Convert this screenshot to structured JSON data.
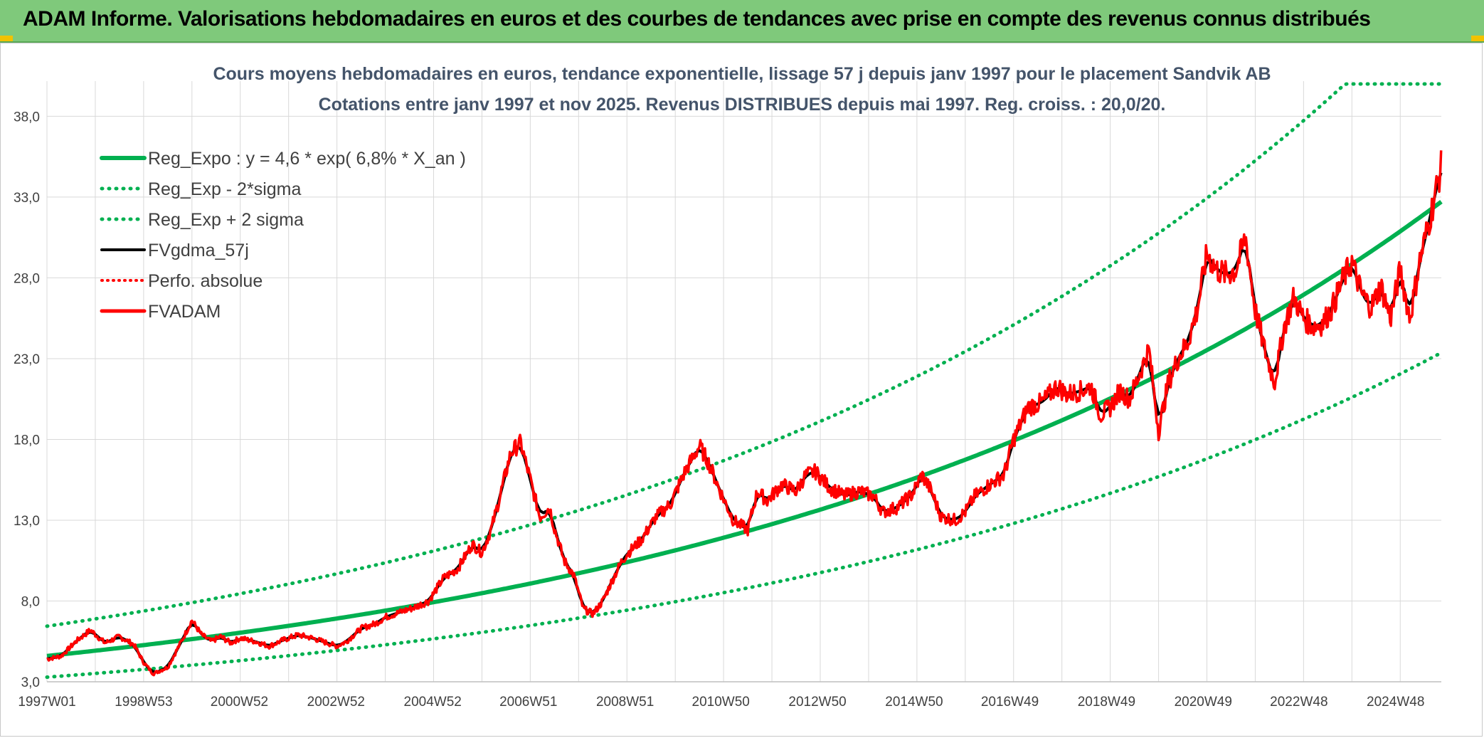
{
  "header": {
    "title": "ADAM Informe. Valorisations hebdomadaires en euros et des courbes de tendances avec prise en compte des revenus connus distribués"
  },
  "colors": {
    "banner": "#7fc97b",
    "trend": "#00b050",
    "smooth": "#000000",
    "price": "#ff0000",
    "grid": "#d9d9d9"
  },
  "chart_data": {
    "type": "line",
    "title": "Cours moyens hebdomadaires en euros, tendance exponentielle, lissage 57 j depuis janv 1997 pour le placement Sandvik AB",
    "subtitle": "Cotations entre janv 1997 et nov 2025. Revenus DISTRIBUES depuis mai 1997. Reg. croiss. : 20,0/20.",
    "ylim": [
      3.0,
      40.0
    ],
    "y_ticks": [
      "3,0",
      "8,0",
      "13,0",
      "18,0",
      "23,0",
      "28,0",
      "33,0",
      "38,0"
    ],
    "x_ticks": [
      "1997W01",
      "1998W53",
      "2000W52",
      "2002W52",
      "2004W52",
      "2006W51",
      "2008W51",
      "2010W50",
      "2012W50",
      "2014W50",
      "2016W49",
      "2018W49",
      "2020W49",
      "2022W48",
      "2024W48"
    ],
    "xlim": [
      1997.0,
      2025.85
    ],
    "grid": true,
    "legend_position": "top-left",
    "regression": {
      "a": 4.6,
      "rate": 0.068
    },
    "sigma_band_factor": 1.4,
    "series": [
      {
        "name": "Reg_Expo : y = 4,6 * exp( 6,8% *  X_an )",
        "style": "trend"
      },
      {
        "name": "Reg_Exp - 2*sigma",
        "style": "band-low"
      },
      {
        "name": "Reg_Exp + 2 sigma",
        "style": "band-high"
      },
      {
        "name": "FVgdma_57j",
        "style": "smooth"
      },
      {
        "name": "Perfo. absolue",
        "style": "dotted-red"
      },
      {
        "name": "FVADAM",
        "style": "price",
        "x": [
          1997.0,
          1997.3,
          1997.6,
          1997.9,
          1998.2,
          1998.5,
          1998.8,
          1999.0,
          1999.2,
          1999.5,
          1999.8,
          2000.0,
          2000.2,
          2000.4,
          2000.6,
          2000.8,
          2001.0,
          2001.3,
          2001.6,
          2001.9,
          2002.2,
          2002.5,
          2002.8,
          2003.0,
          2003.2,
          2003.5,
          2003.8,
          2004.0,
          2004.3,
          2004.6,
          2004.9,
          2005.2,
          2005.5,
          2005.8,
          2006.0,
          2006.2,
          2006.4,
          2006.6,
          2006.8,
          2007.0,
          2007.2,
          2007.4,
          2007.5,
          2007.7,
          2007.9,
          2008.1,
          2008.3,
          2008.5,
          2008.7,
          2008.9,
          2009.0,
          2009.3,
          2009.6,
          2009.9,
          2010.2,
          2010.5,
          2010.7,
          2010.9,
          2011.2,
          2011.5,
          2011.7,
          2011.9,
          2012.2,
          2012.5,
          2012.7,
          2012.9,
          2013.2,
          2013.5,
          2013.8,
          2014.1,
          2014.3,
          2014.6,
          2014.9,
          2015.1,
          2015.3,
          2015.5,
          2015.8,
          2016.0,
          2016.2,
          2016.5,
          2016.8,
          2017.0,
          2017.3,
          2017.6,
          2017.9,
          2018.1,
          2018.4,
          2018.6,
          2018.8,
          2019.0,
          2019.2,
          2019.4,
          2019.6,
          2019.8,
          2020.0,
          2020.2,
          2020.4,
          2020.6,
          2020.8,
          2021.0,
          2021.2,
          2021.4,
          2021.6,
          2021.8,
          2022.0,
          2022.2,
          2022.4,
          2022.6,
          2022.8,
          2023.0,
          2023.2,
          2023.4,
          2023.6,
          2023.8,
          2024.0,
          2024.2,
          2024.4,
          2024.6,
          2024.8,
          2025.0,
          2025.2,
          2025.4,
          2025.6,
          2025.85
        ],
        "values": [
          4.4,
          4.6,
          5.5,
          6.2,
          5.4,
          5.8,
          5.3,
          4.2,
          3.5,
          3.9,
          5.6,
          6.8,
          5.9,
          5.5,
          5.8,
          5.4,
          5.7,
          5.5,
          5.2,
          5.6,
          5.9,
          5.7,
          5.4,
          5.2,
          5.5,
          6.3,
          6.6,
          7.0,
          7.3,
          7.6,
          8.0,
          9.4,
          10.0,
          11.5,
          11.0,
          12.5,
          14.8,
          17.2,
          17.8,
          15.5,
          13.2,
          13.8,
          12.5,
          10.5,
          9.6,
          7.5,
          7.2,
          8.0,
          9.3,
          10.5,
          10.9,
          11.8,
          13.2,
          14.0,
          16.0,
          17.6,
          16.5,
          15.0,
          13.0,
          12.4,
          14.8,
          14.2,
          15.2,
          14.8,
          15.8,
          16.0,
          15.0,
          14.5,
          14.8,
          14.5,
          13.5,
          13.8,
          14.6,
          15.8,
          14.8,
          13.2,
          13.0,
          13.5,
          14.5,
          15.2,
          15.8,
          18.0,
          20.0,
          20.3,
          21.3,
          20.8,
          21.0,
          21.3,
          19.5,
          20.0,
          21.0,
          20.5,
          22.0,
          23.6,
          18.5,
          21.5,
          23.0,
          24.0,
          26.0,
          29.5,
          28.5,
          28.2,
          28.5,
          30.5,
          26.0,
          23.5,
          21.5,
          25.0,
          26.8,
          25.5,
          25.0,
          25.2,
          26.2,
          27.8,
          29.0,
          27.0,
          26.2,
          27.5,
          25.5,
          28.5,
          25.5,
          29.0,
          31.5,
          34.9
        ]
      }
    ]
  }
}
